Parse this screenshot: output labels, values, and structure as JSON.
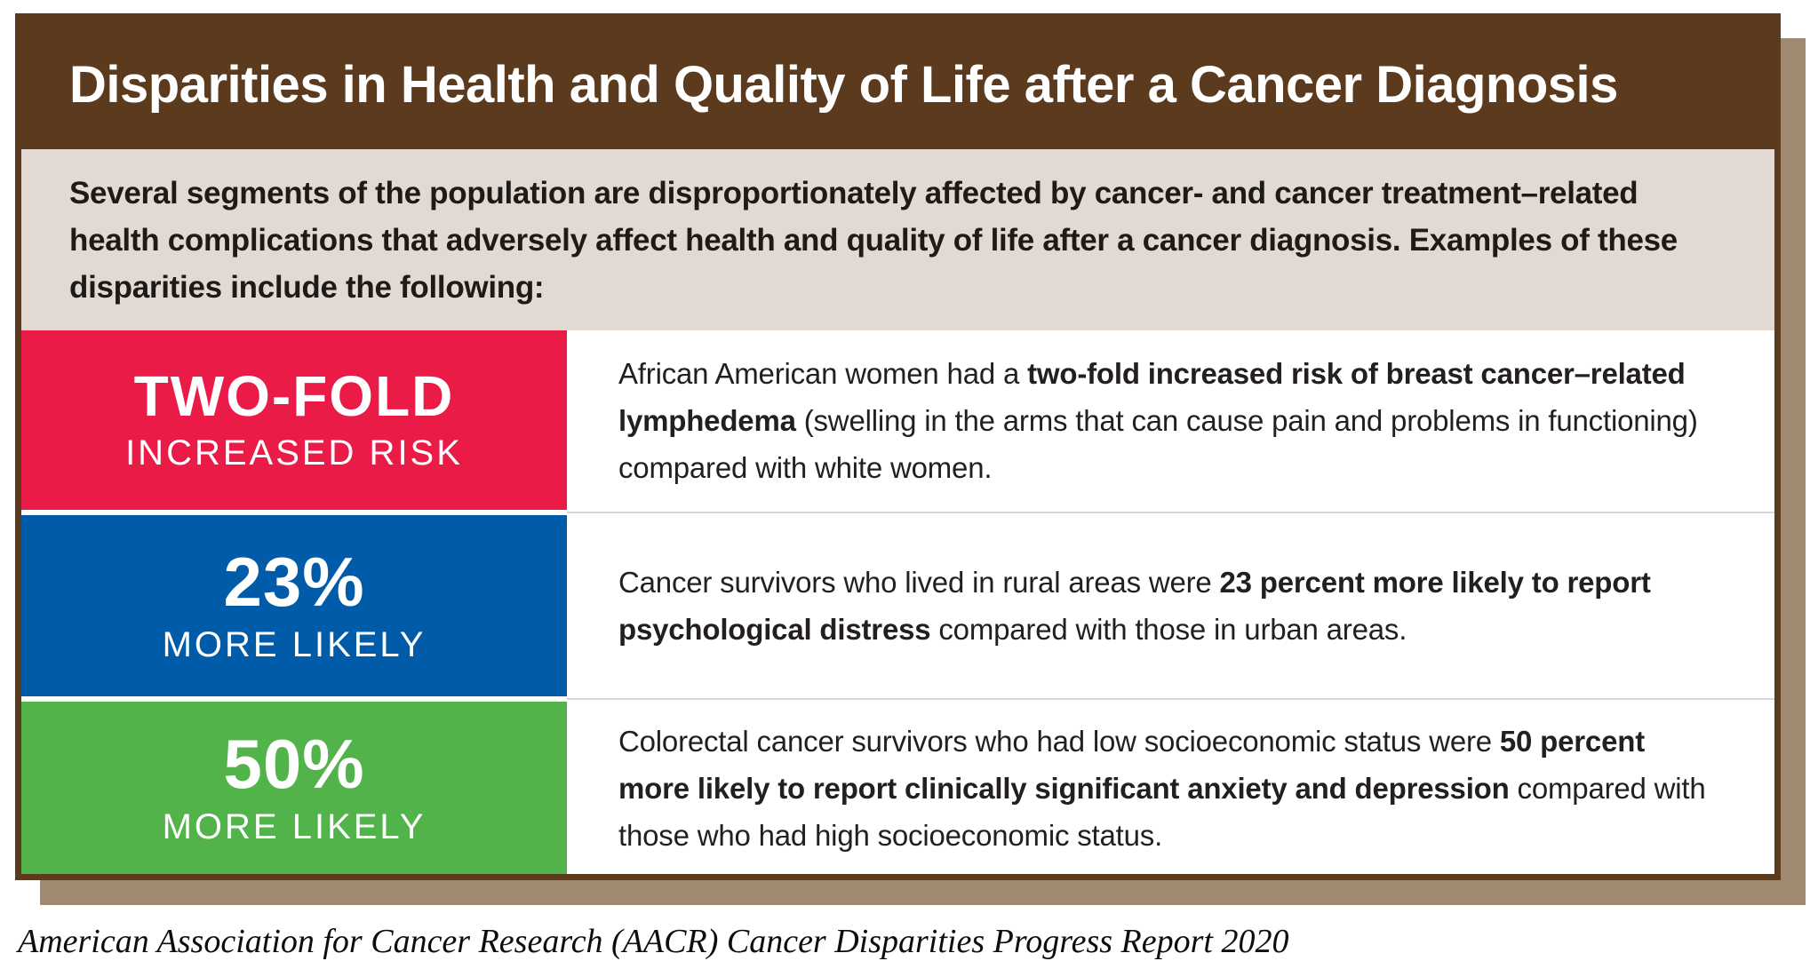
{
  "infographic": {
    "title": "Disparities in Health and Quality of Life after a Cancer Diagnosis",
    "intro": "Several segments of the population are disproportionately affected by cancer- and cancer treatment–related health complications that adversely affect health and quality of life after a cancer diagnosis. Examples of these disparities include the following:",
    "citation": "American Association for Cancer Research (AACR) Cancer Disparities Progress Report 2020"
  },
  "colors": {
    "header_brown": "#5C3A1E",
    "card_border_brown": "#5C3A1E",
    "shadow_tan": "#A08A72",
    "intro_beige": "#E2D9D2",
    "row_red": "#EA1B47",
    "row_blue": "#005CA9",
    "row_green": "#52B34B",
    "body_text": "#231F20"
  },
  "rows": [
    {
      "stat_value": "TWO-FOLD",
      "stat_label": "INCREASED RISK",
      "box_color": "#EA1B47",
      "description": [
        {
          "text": "African American women had a ",
          "bold": false
        },
        {
          "text": "two-fold increased risk of breast cancer–related lymphedema",
          "bold": true
        },
        {
          "text": " (swelling in the arms that can cause pain and problems in functioning) compared with white women.",
          "bold": false
        }
      ]
    },
    {
      "stat_value": "23%",
      "stat_label": "MORE LIKELY",
      "box_color": "#005CA9",
      "description": [
        {
          "text": "Cancer survivors who lived in rural areas were ",
          "bold": false
        },
        {
          "text": "23 percent more likely to report psychological distress",
          "bold": true
        },
        {
          "text": " compared with those in urban areas.",
          "bold": false
        }
      ]
    },
    {
      "stat_value": "50%",
      "stat_label": "MORE LIKELY",
      "box_color": "#52B34B",
      "description": [
        {
          "text": "Colorectal cancer survivors who had low socioeconomic status were ",
          "bold": false
        },
        {
          "text": "50 percent more likely to report clinically significant anxiety and depression",
          "bold": true
        },
        {
          "text": " compared with those who had high socioeconomic status.",
          "bold": false
        }
      ]
    }
  ]
}
